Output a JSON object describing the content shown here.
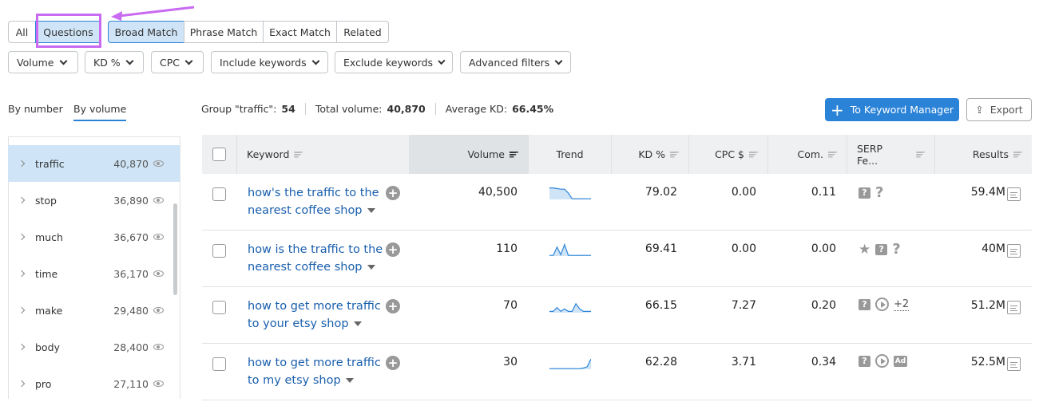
{
  "tabs": {
    "type": [
      {
        "label": "All",
        "selected": false
      },
      {
        "label": "Questions",
        "selected": true
      }
    ],
    "match": [
      {
        "label": "Broad Match",
        "selected": true
      },
      {
        "label": "Phrase Match",
        "selected": false
      },
      {
        "label": "Exact Match",
        "selected": false
      },
      {
        "label": "Related",
        "selected": false
      }
    ]
  },
  "filters": [
    "Volume",
    "KD %",
    "CPC",
    "Include keywords",
    "Exclude keywords",
    "Advanced filters"
  ],
  "annotation_color": "#c86bf0",
  "sidebar": {
    "tabs": [
      {
        "label": "By number",
        "active": false
      },
      {
        "label": "By volume",
        "active": true
      }
    ],
    "items": [
      {
        "name": "traffic",
        "count": "40,870",
        "selected": true
      },
      {
        "name": "stop",
        "count": "36,890"
      },
      {
        "name": "much",
        "count": "36,670"
      },
      {
        "name": "time",
        "count": "36,170"
      },
      {
        "name": "make",
        "count": "29,480"
      },
      {
        "name": "body",
        "count": "28,400"
      },
      {
        "name": "pro",
        "count": "27,110"
      }
    ]
  },
  "summary": {
    "group_label": "Group \"traffic\":",
    "group_value": "54",
    "total_label": "Total volume:",
    "total_value": "40,870",
    "kd_label": "Average KD:",
    "kd_value": "66.45%"
  },
  "actions": {
    "keyword_manager": "To Keyword Manager",
    "export": "Export",
    "accent": "#2b83d8"
  },
  "table": {
    "headers": [
      "Keyword",
      "Volume",
      "Trend",
      "KD %",
      "CPC $",
      "Com.",
      "SERP Fe...",
      "Results"
    ],
    "rows": [
      {
        "keyword": "how's the traffic to the nearest coffee shop",
        "volume": "40,500",
        "trend": [
          0.9,
          0.9,
          0.85,
          0.8,
          0.8,
          0.5,
          0.05,
          0.05,
          0.05,
          0.05,
          0.05,
          0.05
        ],
        "kd": "79.02",
        "cpc": "0.00",
        "com": "0.11",
        "serp": [
          "faq",
          "question"
        ],
        "serp_more": "",
        "results": "59.4M"
      },
      {
        "keyword": "how is the traffic to the nearest coffee shop",
        "volume": "110",
        "trend": [
          0.05,
          0.05,
          0.7,
          0.1,
          0.9,
          0.05,
          0.05,
          0.05,
          0.05,
          0.05,
          0.05,
          0.05
        ],
        "kd": "69.41",
        "cpc": "0.00",
        "com": "0.00",
        "serp": [
          "star",
          "faq",
          "question"
        ],
        "serp_more": "",
        "results": "40M"
      },
      {
        "keyword": "how to get more traffic to your etsy shop",
        "volume": "70",
        "trend": [
          0.1,
          0.1,
          0.4,
          0.1,
          0.3,
          0.1,
          0.1,
          0.7,
          0.3,
          0.1,
          0.1,
          0.1
        ],
        "kd": "66.15",
        "cpc": "7.27",
        "com": "0.20",
        "serp": [
          "faq",
          "video"
        ],
        "serp_more": "+2",
        "results": "51.2M"
      },
      {
        "keyword": "how to get more traffic to my etsy shop",
        "volume": "30",
        "trend": [
          0.05,
          0.05,
          0.05,
          0.05,
          0.05,
          0.05,
          0.05,
          0.05,
          0.05,
          0.1,
          0.2,
          0.8
        ],
        "kd": "62.28",
        "cpc": "3.71",
        "com": "0.34",
        "serp": [
          "faq",
          "video",
          "ad"
        ],
        "serp_more": "",
        "results": "52.5M"
      }
    ]
  }
}
